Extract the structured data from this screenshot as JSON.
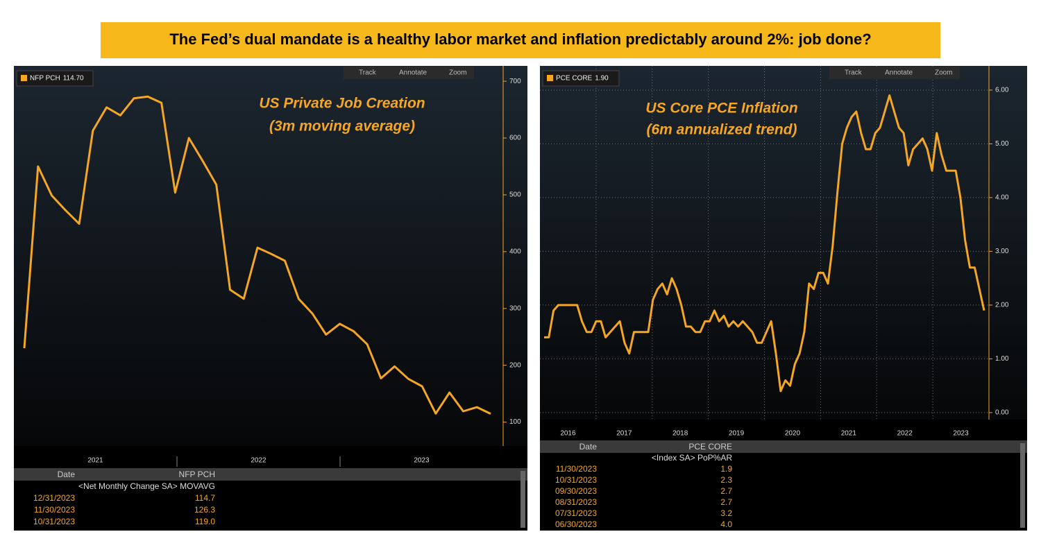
{
  "title": "The Fed’s dual mandate is a healthy labor market and inflation predictably around 2%: job done?",
  "toolbar": [
    "Track",
    "Annotate",
    "Zoom"
  ],
  "chart_data": [
    {
      "type": "line",
      "annotations": [
        "US Private Job Creation",
        "(3m moving average)"
      ],
      "x_labels": [
        "2021",
        "2022",
        "2023"
      ],
      "series": [
        {
          "name": "NFP PCH",
          "legend_value": "114.70",
          "color": "#f5a623",
          "values": [
            230,
            550,
            499,
            473,
            449,
            613,
            654,
            640,
            670,
            673,
            662,
            504,
            600,
            560,
            518,
            333,
            317,
            407,
            396,
            384,
            317,
            291,
            254,
            273,
            260,
            237,
            177,
            198,
            176,
            163,
            115,
            152,
            119,
            126.3,
            114.7
          ]
        }
      ],
      "ylim": [
        58,
        727
      ],
      "yticks": [
        100,
        200,
        300,
        400,
        500,
        600,
        700
      ],
      "grid": false,
      "table": {
        "headers": [
          "Date",
          "NFP PCH"
        ],
        "subheader": "<Net Monthly Change SA> MOVAVG",
        "rows": [
          [
            "12/31/2023",
            "114.7"
          ],
          [
            "11/30/2023",
            "126.3"
          ],
          [
            "10/31/2023",
            "119.0"
          ]
        ]
      }
    },
    {
      "type": "line",
      "annotations": [
        "US Core PCE Inflation",
        "(6m annualized trend)"
      ],
      "x_labels": [
        "2016",
        "2017",
        "2018",
        "2019",
        "2020",
        "2021",
        "2022",
        "2023"
      ],
      "series": [
        {
          "name": "PCE CORE",
          "legend_value": "1.90",
          "color": "#f5a623",
          "values": [
            1.4,
            1.4,
            1.9,
            2.0,
            2.0,
            2.0,
            2.0,
            2.0,
            1.7,
            1.5,
            1.5,
            1.7,
            1.7,
            1.4,
            1.5,
            1.6,
            1.7,
            1.3,
            1.1,
            1.5,
            1.5,
            1.5,
            1.5,
            2.1,
            2.3,
            2.4,
            2.2,
            2.5,
            2.3,
            2.0,
            1.6,
            1.6,
            1.5,
            1.5,
            1.7,
            1.7,
            1.9,
            1.7,
            1.8,
            1.6,
            1.7,
            1.6,
            1.7,
            1.6,
            1.5,
            1.3,
            1.3,
            1.5,
            1.7,
            1.1,
            0.4,
            0.6,
            0.5,
            0.9,
            1.1,
            1.5,
            2.4,
            2.3,
            2.6,
            2.6,
            2.4,
            3.1,
            4.1,
            5.0,
            5.3,
            5.5,
            5.6,
            5.2,
            4.9,
            4.9,
            5.2,
            5.3,
            5.6,
            5.9,
            5.6,
            5.3,
            5.2,
            4.6,
            4.9,
            5.0,
            5.1,
            4.9,
            4.5,
            5.2,
            4.8,
            4.5,
            4.5,
            4.5,
            4.0,
            3.2,
            2.7,
            2.7,
            2.3,
            1.9
          ]
        }
      ],
      "ylim": [
        -0.13,
        6.45
      ],
      "yticks": [
        {
          "value": 0,
          "label": "0.00"
        },
        {
          "value": 1,
          "label": "1.00"
        },
        {
          "value": 2,
          "label": "2.00"
        },
        {
          "value": 3,
          "label": "3.00"
        },
        {
          "value": 4,
          "label": "4.00"
        },
        {
          "value": 5,
          "label": "5.00"
        },
        {
          "value": 6,
          "label": "6.00"
        }
      ],
      "grid": true,
      "table": {
        "headers": [
          "Date",
          "PCE CORE"
        ],
        "subheader": "<Index SA> PoP%AR",
        "rows": [
          [
            "11/30/2023",
            "1.9"
          ],
          [
            "10/31/2023",
            "2.3"
          ],
          [
            "09/30/2023",
            "2.7"
          ],
          [
            "08/31/2023",
            "2.7"
          ],
          [
            "07/31/2023",
            "3.2"
          ],
          [
            "06/30/2023",
            "4.0"
          ]
        ]
      }
    }
  ]
}
